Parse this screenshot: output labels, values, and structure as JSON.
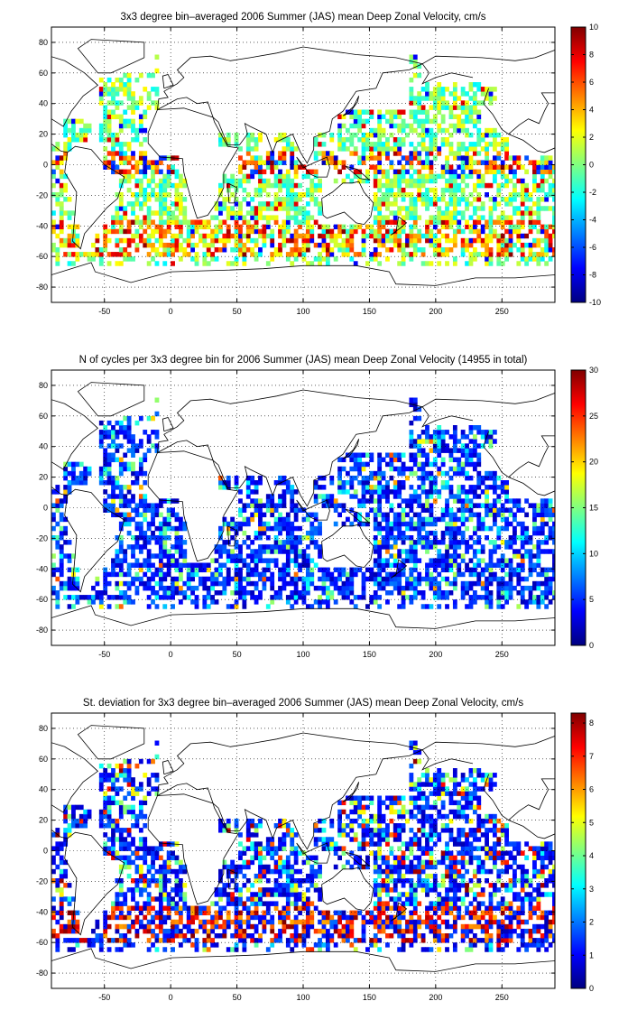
{
  "chart_data": [
    {
      "type": "heatmap",
      "title": "3x3 degree bin–averaged 2006 Summer (JAS) mean Deep Zonal Velocity, cm/s",
      "xlabel": "",
      "ylabel": "",
      "xlim": [
        -90,
        290
      ],
      "ylim": [
        -90,
        90
      ],
      "x_ticks": [
        -50,
        0,
        50,
        100,
        150,
        200,
        250
      ],
      "y_ticks": [
        -80,
        -60,
        -40,
        -20,
        0,
        20,
        40,
        60,
        80
      ],
      "clim": [
        -10,
        10
      ],
      "colorbar_ticks": [
        -10,
        -8,
        -6,
        -4,
        -2,
        0,
        2,
        4,
        6,
        8,
        10
      ],
      "grid": true,
      "colormap": "jet",
      "field": "mean-velocity"
    },
    {
      "type": "heatmap",
      "title": "N of cycles per 3x3 degree bin for 2006 Summer (JAS) mean Deep Zonal Velocity (14955 in total)",
      "xlabel": "",
      "ylabel": "",
      "xlim": [
        -90,
        290
      ],
      "ylim": [
        -90,
        90
      ],
      "x_ticks": [
        -50,
        0,
        50,
        100,
        150,
        200,
        250
      ],
      "y_ticks": [
        -80,
        -60,
        -40,
        -20,
        0,
        20,
        40,
        60,
        80
      ],
      "clim": [
        0,
        30
      ],
      "colorbar_ticks": [
        0,
        5,
        10,
        15,
        20,
        25,
        30
      ],
      "grid": true,
      "colormap": "jet",
      "field": "count"
    },
    {
      "type": "heatmap",
      "title": "St. deviation for 3x3 degree bin–averaged 2006 Summer (JAS) mean Deep Zonal Velocity, cm/s",
      "xlabel": "",
      "ylabel": "",
      "xlim": [
        -90,
        290
      ],
      "ylim": [
        -90,
        90
      ],
      "x_ticks": [
        -50,
        0,
        50,
        100,
        150,
        200,
        250
      ],
      "y_ticks": [
        -80,
        -60,
        -40,
        -20,
        0,
        20,
        40,
        60,
        80
      ],
      "clim": [
        0,
        8.3
      ],
      "colorbar_ticks": [
        0,
        1,
        2,
        3,
        4,
        5,
        6,
        7,
        8
      ],
      "grid": true,
      "colormap": "jet",
      "field": "stdev"
    }
  ]
}
